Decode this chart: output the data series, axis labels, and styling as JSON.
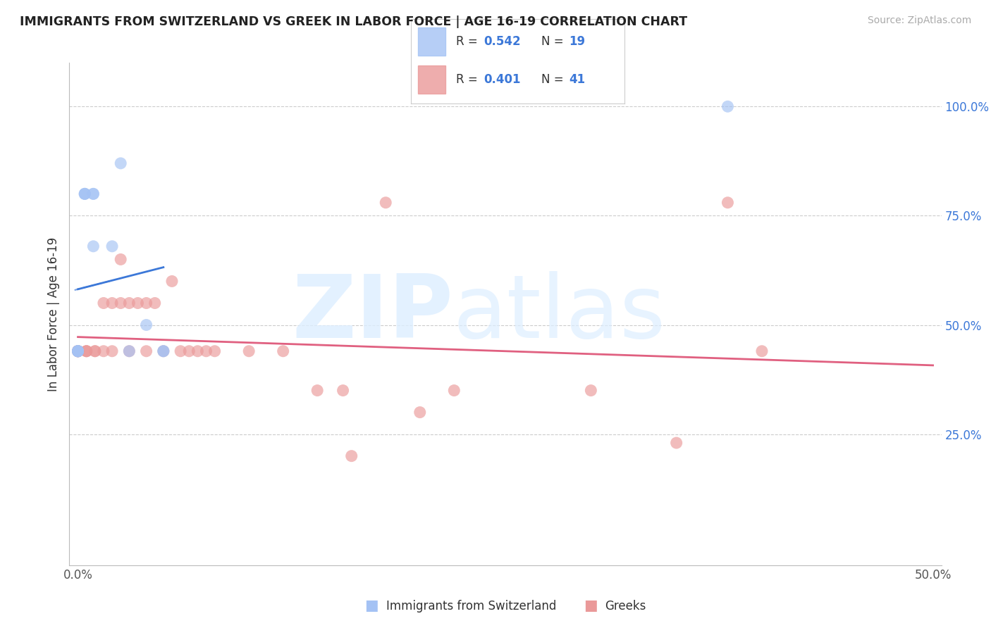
{
  "title": "IMMIGRANTS FROM SWITZERLAND VS GREEK IN LABOR FORCE | AGE 16-19 CORRELATION CHART",
  "source": "Source: ZipAtlas.com",
  "ylabel": "In Labor Force | Age 16-19",
  "xlim": [
    -0.005,
    0.505
  ],
  "ylim": [
    -0.05,
    1.1
  ],
  "xticks": [
    0.0,
    0.5
  ],
  "xtick_labels": [
    "0.0%",
    "50.0%"
  ],
  "ytick_positions": [
    0.25,
    0.5,
    0.75,
    1.0
  ],
  "ytick_labels": [
    "25.0%",
    "50.0%",
    "75.0%",
    "100.0%"
  ],
  "swiss_color": "#a4c2f4",
  "greek_color": "#ea9999",
  "swiss_R": 0.542,
  "swiss_N": 19,
  "greek_R": 0.401,
  "greek_N": 41,
  "swiss_line_color": "#3c78d8",
  "greek_line_color": "#e06080",
  "swiss_x": [
    0.0,
    0.0,
    0.0,
    0.0,
    0.0,
    0.0,
    0.004,
    0.004,
    0.004,
    0.009,
    0.009,
    0.009,
    0.02,
    0.025,
    0.03,
    0.04,
    0.05,
    0.05,
    0.38
  ],
  "swiss_y": [
    0.44,
    0.44,
    0.44,
    0.44,
    0.44,
    0.44,
    0.8,
    0.8,
    0.8,
    0.8,
    0.8,
    0.68,
    0.68,
    0.87,
    0.44,
    0.5,
    0.44,
    0.44,
    1.0
  ],
  "greek_x": [
    0.0,
    0.0,
    0.0,
    0.0,
    0.0,
    0.005,
    0.005,
    0.005,
    0.01,
    0.01,
    0.015,
    0.015,
    0.02,
    0.02,
    0.025,
    0.025,
    0.03,
    0.03,
    0.035,
    0.04,
    0.04,
    0.045,
    0.05,
    0.055,
    0.06,
    0.065,
    0.07,
    0.075,
    0.08,
    0.1,
    0.12,
    0.14,
    0.155,
    0.16,
    0.18,
    0.2,
    0.22,
    0.3,
    0.35,
    0.38,
    0.4
  ],
  "greek_y": [
    0.44,
    0.44,
    0.44,
    0.44,
    0.44,
    0.44,
    0.44,
    0.44,
    0.44,
    0.44,
    0.44,
    0.55,
    0.44,
    0.55,
    0.55,
    0.65,
    0.44,
    0.55,
    0.55,
    0.44,
    0.55,
    0.55,
    0.44,
    0.6,
    0.44,
    0.44,
    0.44,
    0.44,
    0.44,
    0.44,
    0.44,
    0.35,
    0.35,
    0.2,
    0.78,
    0.3,
    0.35,
    0.35,
    0.23,
    0.78,
    0.44
  ]
}
